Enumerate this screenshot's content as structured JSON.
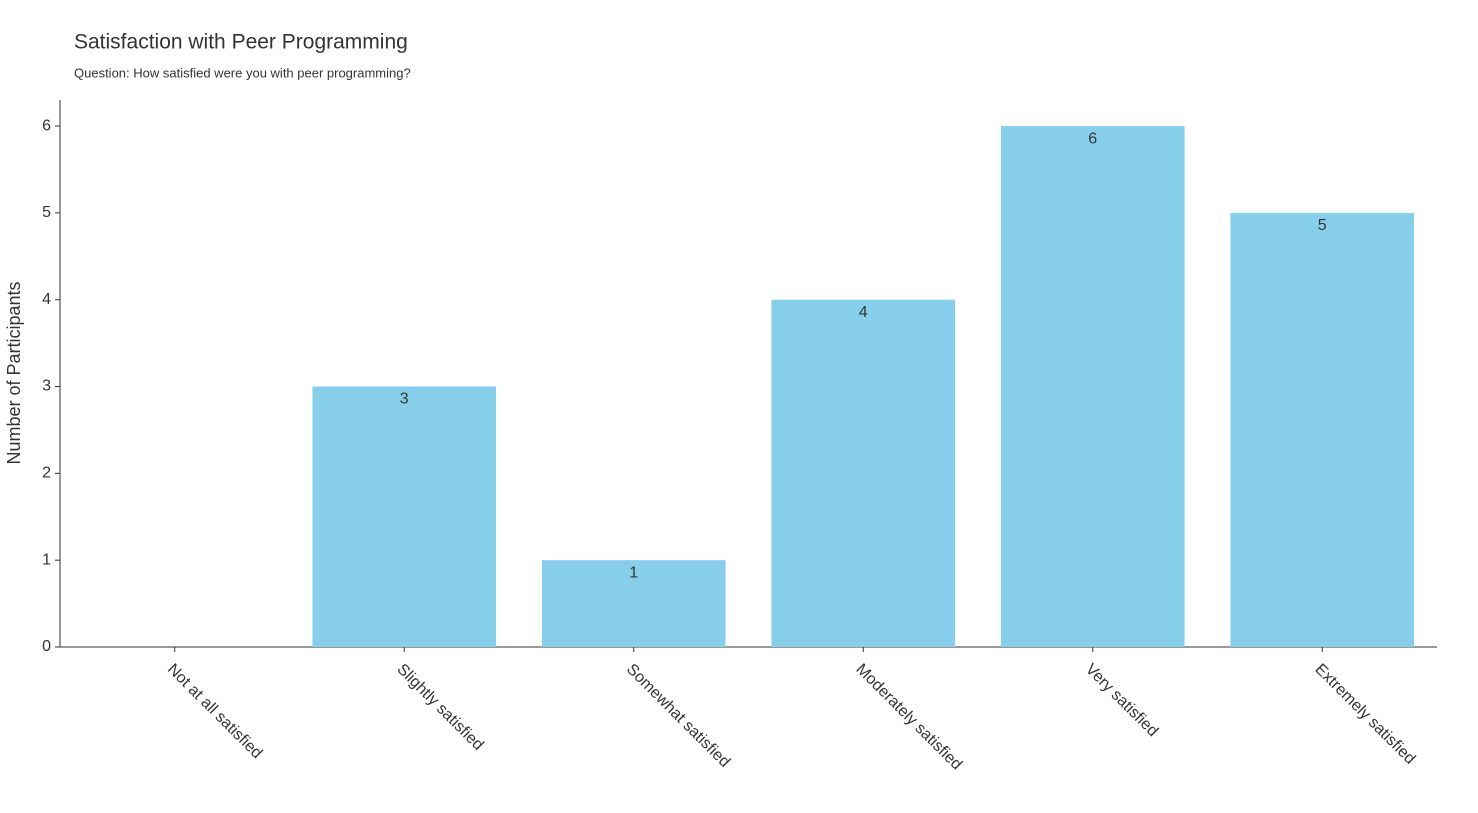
{
  "chart_data": {
    "type": "bar",
    "title": "Satisfaction with Peer Programming",
    "subtitle": "Question: How satisfied were you with peer programming?",
    "y_label": "Number of Participants",
    "categories": [
      "Not at all satisfied",
      "Slightly satisfied",
      "Somewhat satisfied",
      "Moderately satisfied",
      "Very satisfied",
      "Extremely satisfied"
    ],
    "values": [
      0,
      3,
      1,
      4,
      6,
      5
    ],
    "color": "#87ceeb",
    "ylim": [
      0,
      6.3
    ],
    "yticks": [
      0,
      1,
      2,
      3,
      4,
      5,
      6
    ],
    "grid": false
  }
}
